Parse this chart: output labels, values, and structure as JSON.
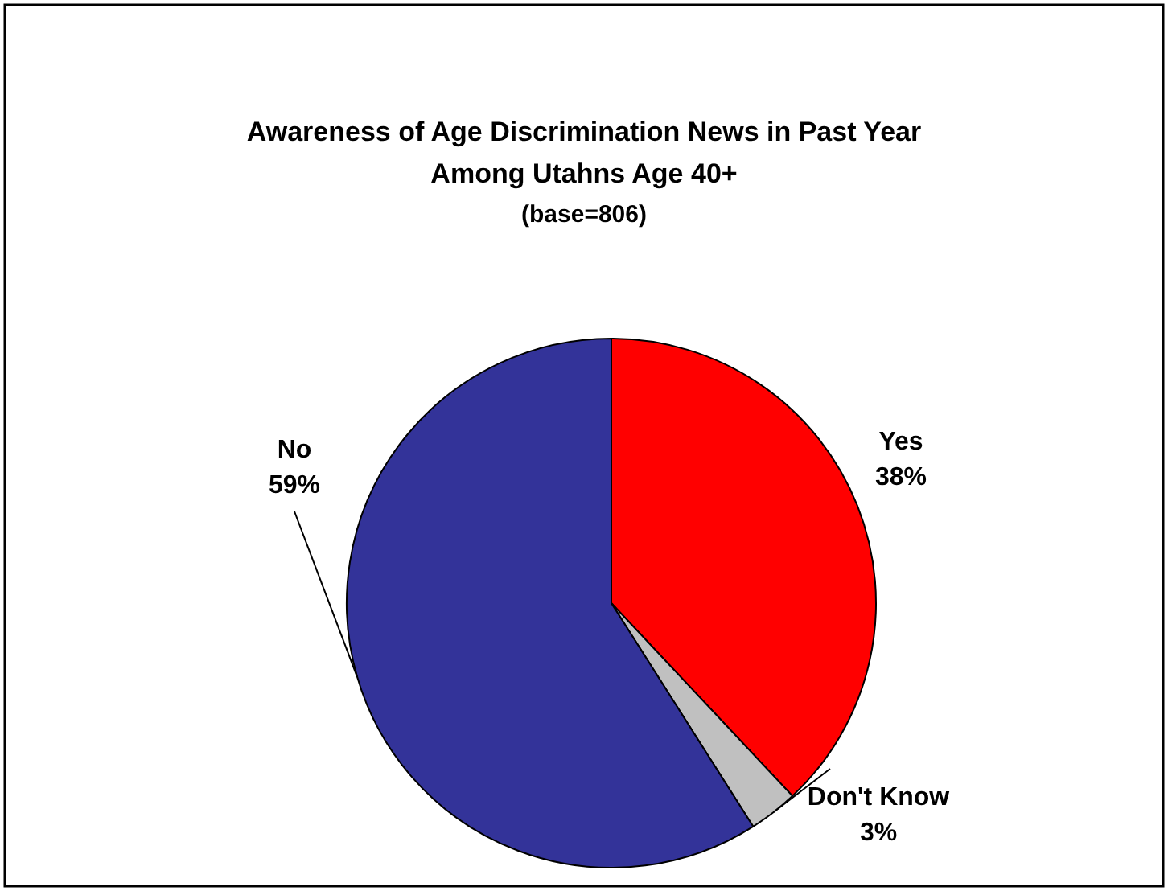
{
  "chart_data": {
    "type": "pie",
    "title": "Awareness of Age Discrimination News in Past Year\nAmong Utahns Age 40+",
    "subtitle": "(base=806)",
    "categories": [
      "Yes",
      "Don't Know",
      "No"
    ],
    "values": [
      38,
      3,
      59
    ],
    "colors": [
      "#ff0000",
      "#c0c0c0",
      "#333399"
    ],
    "value_labels": [
      "38%",
      "3%",
      "59%"
    ],
    "legend": false
  }
}
